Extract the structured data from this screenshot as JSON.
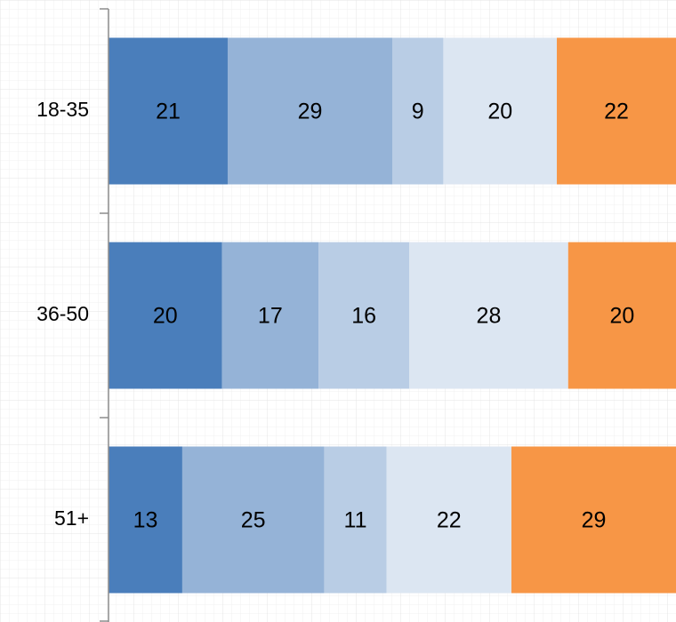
{
  "chart_data": {
    "type": "stacked-barh",
    "categories": [
      "18-35",
      "36-50",
      "51+"
    ],
    "series": [
      {
        "color": "#4a7ebb",
        "values": [
          21,
          20,
          13
        ]
      },
      {
        "color": "#95b3d7",
        "values": [
          29,
          17,
          25
        ]
      },
      {
        "color": "#b9cde5",
        "values": [
          9,
          16,
          11
        ]
      },
      {
        "color": "#dce6f2",
        "values": [
          20,
          28,
          22
        ]
      },
      {
        "color": "#f79646",
        "values": [
          22,
          20,
          29
        ]
      }
    ],
    "xlim": [
      0,
      100
    ]
  }
}
